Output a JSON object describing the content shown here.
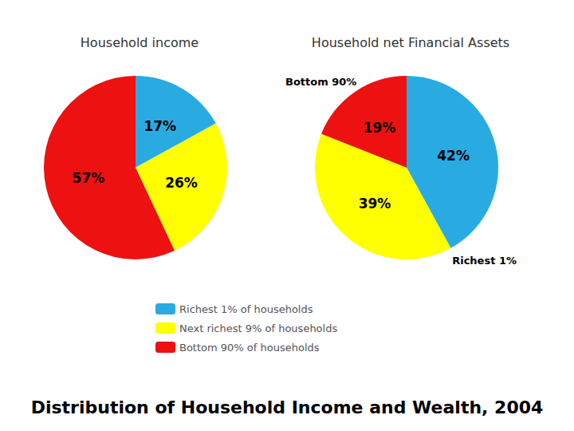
{
  "title": "Distribution of Household Income and Wealth, 2004",
  "legend": "bottom",
  "chart_data": [
    {
      "type": "pie",
      "title": "Household income",
      "categories": [
        "Richest 1% of households",
        "Next richest 9% of households",
        "Bottom 90% of households"
      ],
      "values": [
        17,
        26,
        57
      ],
      "value_labels": [
        "17%",
        "26%",
        "57%"
      ],
      "colors": [
        "#29ABE2",
        "#FFFF00",
        "#EE1111"
      ],
      "data_labels": true
    },
    {
      "type": "pie",
      "title": "Household net Financial Assets",
      "categories": [
        "Richest 1% of households",
        "Next richest 9% of households",
        "Bottom 90% of households"
      ],
      "values": [
        42,
        39,
        19
      ],
      "value_labels": [
        "42%",
        "39%",
        "19%"
      ],
      "colors": [
        "#29ABE2",
        "#FFFF00",
        "#EE1111"
      ],
      "data_labels": true,
      "annotations": [
        {
          "text": "Bottom 90%"
        },
        {
          "text": "Richest 1%"
        }
      ]
    }
  ]
}
